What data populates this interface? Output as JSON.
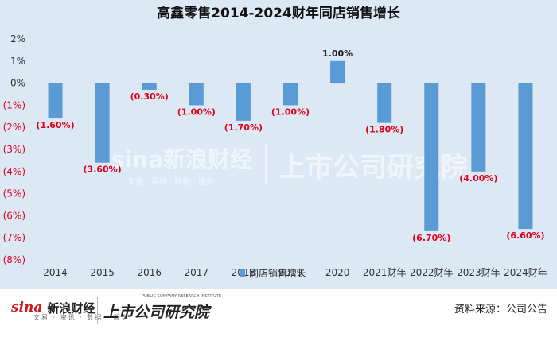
{
  "chart_data": {
    "type": "bar",
    "title": "高鑫零售2014-2024财年同店销售增长",
    "categories": [
      "2014",
      "2015",
      "2016",
      "2017",
      "2018",
      "2019",
      "2020",
      "2021财年",
      "2022财年",
      "2023财年",
      "2024财年"
    ],
    "series": [
      {
        "name": "同店销售增长",
        "values": [
          -1.6,
          -3.6,
          -0.3,
          -1.0,
          -1.7,
          -1.0,
          1.0,
          -1.8,
          -6.7,
          -4.0,
          -6.6
        ],
        "color": "#5b9bd5"
      }
    ],
    "data_labels": [
      "(1.60%)",
      "(3.60%)",
      "(0.30%)",
      "(1.00%)",
      "(1.70%)",
      "(1.00%)",
      "1.00%",
      "(1.80%)",
      "(6.70%)",
      "(4.00%)",
      "(6.60%)"
    ],
    "ylim": [
      -8,
      2
    ],
    "yticks": [
      2,
      1,
      0,
      -1,
      -2,
      -3,
      -4,
      -5,
      -6,
      -7,
      -8
    ],
    "ytick_labels": [
      "2%",
      "1%",
      "0%",
      "(1%)",
      "(2%)",
      "(3%)",
      "(4%)",
      "(5%)",
      "(6%)",
      "(7%)",
      "(8%)"
    ],
    "grid": false,
    "legend": "bottom-center",
    "negative_label_color": "#e0001b",
    "positive_label_color": "#222222"
  },
  "watermark": {
    "sina": "sina新浪财经",
    "sina_sub": "文易 · 资讯 · 数据 · 服务",
    "research": "上市公司研究院"
  },
  "footer": {
    "sina_logo": "sina",
    "sina_cn": "新浪财经",
    "sina_sub": "文易 · 资讯 · 数据 · 服务",
    "research": "上市公司研究院",
    "research_en": "PUBLIC COMPANY RESEARCH INSTITUTE",
    "source": "资料来源：公司公告"
  }
}
